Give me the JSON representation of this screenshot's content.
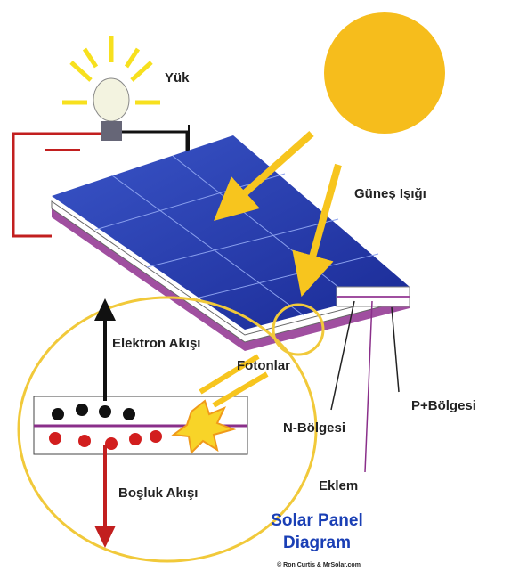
{
  "labels": {
    "load": "Yük",
    "sunlight": "Güneş Işığı",
    "electron_flow": "Elektron Akışı",
    "photons": "Fotonlar",
    "n_region": "N-Bölgesi",
    "p_region": "P+Bölgesi",
    "junction": "Eklem",
    "hole_flow": "Boşluk Akışı"
  },
  "title": {
    "line1": "Solar Panel",
    "line2": "Diagram"
  },
  "credit": "© Ron Curtis & MrSolar.com"
}
